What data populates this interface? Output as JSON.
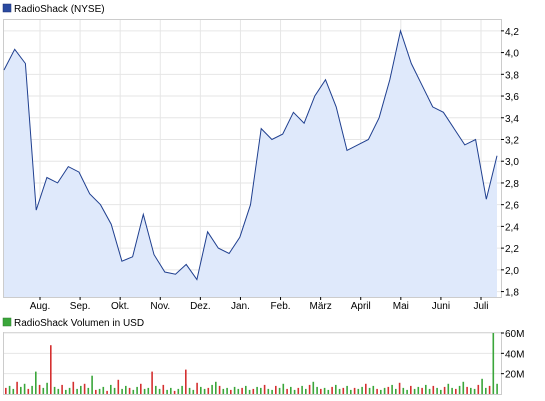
{
  "chart_data": [
    {
      "type": "area",
      "legend": "RadioShack (NYSE)",
      "legend_placement": "top-left",
      "y_axis_side": "right",
      "grid": true,
      "ylim": [
        1.75,
        4.3
      ],
      "y_ticks": [
        "4,2",
        "4,0",
        "3,8",
        "3,6",
        "3,4",
        "3,2",
        "3,0",
        "2,8",
        "2,6",
        "2,4",
        "2,2",
        "2,0",
        "1,8"
      ],
      "x_tick_labels": [
        "Aug.",
        "Sep.",
        "Okt.",
        "Nov.",
        "Dez.",
        "Jan.",
        "Feb.",
        "März",
        "April",
        "Mai",
        "Juni",
        "Juli"
      ],
      "x": [
        "Jul",
        "Aug",
        "Aug",
        "Aug",
        "Aug",
        "Sep",
        "Sep",
        "Sep",
        "Sep",
        "Okt",
        "Okt",
        "Okt",
        "Okt",
        "Nov",
        "Nov",
        "Nov",
        "Nov",
        "Dez",
        "Dez",
        "Dez",
        "Dez",
        "Jan",
        "Jan",
        "Jan",
        "Jan",
        "Feb",
        "Feb",
        "Feb",
        "Feb",
        "März",
        "März",
        "März",
        "März",
        "April",
        "April",
        "April",
        "April",
        "Mai",
        "Mai",
        "Mai",
        "Mai",
        "Juni",
        "Juni",
        "Juni",
        "Juni",
        "Juli",
        "Juli"
      ],
      "series": [
        {
          "name": "RadioShack (NYSE)",
          "color": "#1f3f8f",
          "fill": "#dfe9fb",
          "values": [
            3.84,
            4.03,
            3.9,
            2.55,
            2.85,
            2.8,
            2.95,
            2.9,
            2.7,
            2.6,
            2.42,
            2.08,
            2.12,
            2.51,
            2.14,
            1.98,
            1.96,
            2.05,
            1.91,
            2.35,
            2.2,
            2.15,
            2.3,
            2.6,
            3.3,
            3.2,
            3.25,
            3.45,
            3.35,
            3.6,
            3.75,
            3.5,
            3.1,
            3.15,
            3.2,
            3.4,
            3.75,
            4.2,
            3.9,
            3.7,
            3.5,
            3.45,
            3.3,
            3.15,
            3.2,
            2.65,
            3.05
          ]
        }
      ]
    },
    {
      "type": "bar",
      "legend": "RadioShack Volumen in USD",
      "legend_placement": "top-left",
      "y_axis_side": "right",
      "grid": true,
      "ylim": [
        0,
        60
      ],
      "y_ticks": [
        "60M",
        "40M",
        "20M"
      ],
      "series": [
        {
          "name": "RadioShack Volumen in USD",
          "color_up": "#3aa63a",
          "color_down": "#d43030",
          "values": [
            6,
            8,
            5,
            12,
            7,
            10,
            5,
            8,
            22,
            9,
            6,
            11,
            48,
            7,
            5,
            9,
            4,
            6,
            12,
            5,
            8,
            10,
            6,
            18,
            4,
            5,
            7,
            3,
            9,
            6,
            14,
            5,
            8,
            6,
            4,
            7,
            10,
            5,
            6,
            22,
            8,
            5,
            9,
            4,
            6,
            3,
            5,
            8,
            24,
            6,
            4,
            11,
            7,
            5,
            6,
            9,
            12,
            8,
            5,
            6,
            4,
            7,
            5,
            6,
            8,
            4,
            5,
            7,
            6,
            9,
            5,
            4,
            8,
            6,
            10,
            5,
            7,
            4,
            6,
            8,
            5,
            9,
            12,
            7,
            5,
            6,
            4,
            7,
            9,
            5,
            6,
            8,
            4,
            6,
            5,
            7,
            10,
            6,
            8,
            5,
            4,
            6,
            7,
            9,
            5,
            11,
            6,
            4,
            8,
            5,
            7,
            6,
            9,
            5,
            8,
            6,
            4,
            7,
            10,
            6,
            5,
            8,
            12,
            7,
            6,
            5,
            9,
            15,
            6,
            8,
            60,
            10
          ]
        }
      ]
    }
  ]
}
